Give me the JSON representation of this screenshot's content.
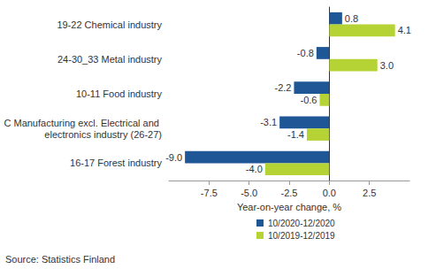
{
  "chart_data": {
    "type": "bar",
    "orientation": "horizontal",
    "categories": [
      "19-22 Chemical industry",
      "24-30_33 Metal industry",
      "10-11 Food industry",
      "C Manufacturing excl. Electrical and electronics industry (26-27)",
      "16-17 Forest industry"
    ],
    "series": [
      {
        "name": "10/2020-12/2020",
        "color": "#1f5796",
        "values": [
          0.8,
          -0.8,
          -2.2,
          -3.1,
          -9.0
        ],
        "value_labels": [
          "0.8",
          "-0.8",
          "-2.2",
          "-3.1",
          "-9.0"
        ]
      },
      {
        "name": "10/2019-12/2019",
        "color": "#b5d334",
        "values": [
          4.1,
          3.0,
          -0.6,
          -1.4,
          -4.0
        ],
        "value_labels": [
          "4.1",
          "3.0",
          "-0.6",
          "-1.4",
          "-4.0"
        ]
      }
    ],
    "xlim": [
      -10,
      5
    ],
    "xticks": [
      -7.5,
      {
        "value": -5,
        "label": "-5.0"
      },
      -2.5,
      {
        "value": 0,
        "label": "0.0"
      },
      2.5
    ],
    "xlabel": "Year-on-year change, %",
    "data_labels": true,
    "grid": false,
    "legend": "bottom",
    "annotations": [
      "Source: Statistics Finland"
    ]
  }
}
